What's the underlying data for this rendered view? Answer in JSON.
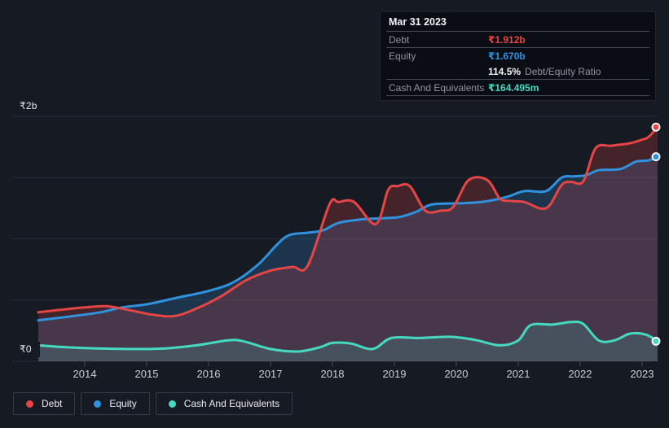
{
  "tooltip": {
    "date": "Mar 31 2023",
    "debt_label": "Debt",
    "debt_value": "₹1.912b",
    "equity_label": "Equity",
    "equity_value": "₹1.670b",
    "ratio_value": "114.5%",
    "ratio_label": "Debt/Equity Ratio",
    "cash_label": "Cash And Equivalents",
    "cash_value": "₹164.495m"
  },
  "legend": [
    {
      "label": "Debt",
      "color": "#e64545"
    },
    {
      "label": "Equity",
      "color": "#3092de"
    },
    {
      "label": "Cash And Equivalents",
      "color": "#45d9c1"
    }
  ],
  "chart_data": {
    "type": "area",
    "title": "",
    "x_ticks": [
      2014,
      2015,
      2016,
      2017,
      2018,
      2019,
      2020,
      2021,
      2022,
      2023
    ],
    "x_range": [
      2013.25,
      2023.25
    ],
    "y_axis": {
      "min": 0,
      "max": 2.0,
      "grid_step": 0.5,
      "unit": "₹ billions",
      "labels": {
        "top": "₹2b",
        "bottom": "₹0"
      }
    },
    "grid_color": "#262c37",
    "tick_color": "#4a515e",
    "tick_label_color": "#c9ced6",
    "series": [
      {
        "name": "Equity",
        "color": "#3092de",
        "fill": "rgba(48,146,222,0.22)",
        "points": [
          [
            2013.25,
            0.335
          ],
          [
            2013.75,
            0.365
          ],
          [
            2014.25,
            0.4
          ],
          [
            2014.6,
            0.44
          ],
          [
            2015.0,
            0.465
          ],
          [
            2015.5,
            0.52
          ],
          [
            2016.0,
            0.575
          ],
          [
            2016.4,
            0.645
          ],
          [
            2016.8,
            0.79
          ],
          [
            2017.1,
            0.95
          ],
          [
            2017.3,
            1.03
          ],
          [
            2017.6,
            1.05
          ],
          [
            2017.85,
            1.07
          ],
          [
            2018.1,
            1.13
          ],
          [
            2018.5,
            1.16
          ],
          [
            2018.9,
            1.17
          ],
          [
            2019.1,
            1.18
          ],
          [
            2019.35,
            1.22
          ],
          [
            2019.6,
            1.28
          ],
          [
            2020.0,
            1.29
          ],
          [
            2020.4,
            1.3
          ],
          [
            2020.8,
            1.34
          ],
          [
            2021.1,
            1.39
          ],
          [
            2021.45,
            1.39
          ],
          [
            2021.7,
            1.5
          ],
          [
            2021.9,
            1.51
          ],
          [
            2022.1,
            1.52
          ],
          [
            2022.3,
            1.56
          ],
          [
            2022.65,
            1.57
          ],
          [
            2022.9,
            1.63
          ],
          [
            2023.1,
            1.64
          ],
          [
            2023.25,
            1.67
          ]
        ]
      },
      {
        "name": "Debt",
        "color": "#e64545",
        "fill": "rgba(230,69,69,0.22)",
        "points": [
          [
            2013.25,
            0.4
          ],
          [
            2013.6,
            0.42
          ],
          [
            2014.0,
            0.44
          ],
          [
            2014.35,
            0.45
          ],
          [
            2014.7,
            0.42
          ],
          [
            2015.1,
            0.38
          ],
          [
            2015.45,
            0.37
          ],
          [
            2015.8,
            0.43
          ],
          [
            2016.2,
            0.53
          ],
          [
            2016.6,
            0.66
          ],
          [
            2017.0,
            0.74
          ],
          [
            2017.35,
            0.77
          ],
          [
            2017.6,
            0.78
          ],
          [
            2017.95,
            1.28
          ],
          [
            2018.1,
            1.3
          ],
          [
            2018.35,
            1.3
          ],
          [
            2018.7,
            1.12
          ],
          [
            2018.9,
            1.4
          ],
          [
            2019.05,
            1.43
          ],
          [
            2019.25,
            1.43
          ],
          [
            2019.5,
            1.23
          ],
          [
            2019.75,
            1.23
          ],
          [
            2019.95,
            1.26
          ],
          [
            2020.2,
            1.48
          ],
          [
            2020.5,
            1.48
          ],
          [
            2020.7,
            1.33
          ],
          [
            2020.85,
            1.31
          ],
          [
            2021.1,
            1.3
          ],
          [
            2021.45,
            1.25
          ],
          [
            2021.7,
            1.44
          ],
          [
            2021.85,
            1.465
          ],
          [
            2022.05,
            1.47
          ],
          [
            2022.25,
            1.74
          ],
          [
            2022.5,
            1.76
          ],
          [
            2022.8,
            1.78
          ],
          [
            2023.0,
            1.81
          ],
          [
            2023.1,
            1.83
          ],
          [
            2023.25,
            1.912
          ]
        ]
      },
      {
        "name": "Cash And Equivalents",
        "color": "#45d9c1",
        "fill": "rgba(69,217,193,0.16)",
        "points": [
          [
            2013.25,
            0.13
          ],
          [
            2013.7,
            0.115
          ],
          [
            2014.2,
            0.105
          ],
          [
            2014.8,
            0.1
          ],
          [
            2015.3,
            0.105
          ],
          [
            2015.8,
            0.13
          ],
          [
            2016.3,
            0.17
          ],
          [
            2016.55,
            0.165
          ],
          [
            2017.0,
            0.1
          ],
          [
            2017.45,
            0.08
          ],
          [
            2017.8,
            0.115
          ],
          [
            2018.0,
            0.15
          ],
          [
            2018.3,
            0.145
          ],
          [
            2018.65,
            0.1
          ],
          [
            2018.95,
            0.19
          ],
          [
            2019.4,
            0.19
          ],
          [
            2019.9,
            0.2
          ],
          [
            2020.3,
            0.175
          ],
          [
            2020.7,
            0.13
          ],
          [
            2021.0,
            0.17
          ],
          [
            2021.2,
            0.295
          ],
          [
            2021.55,
            0.3
          ],
          [
            2021.85,
            0.32
          ],
          [
            2022.05,
            0.305
          ],
          [
            2022.3,
            0.17
          ],
          [
            2022.55,
            0.17
          ],
          [
            2022.8,
            0.225
          ],
          [
            2023.05,
            0.22
          ],
          [
            2023.25,
            0.164
          ]
        ]
      }
    ],
    "end_markers": true,
    "legend_position": "bottom-left"
  }
}
